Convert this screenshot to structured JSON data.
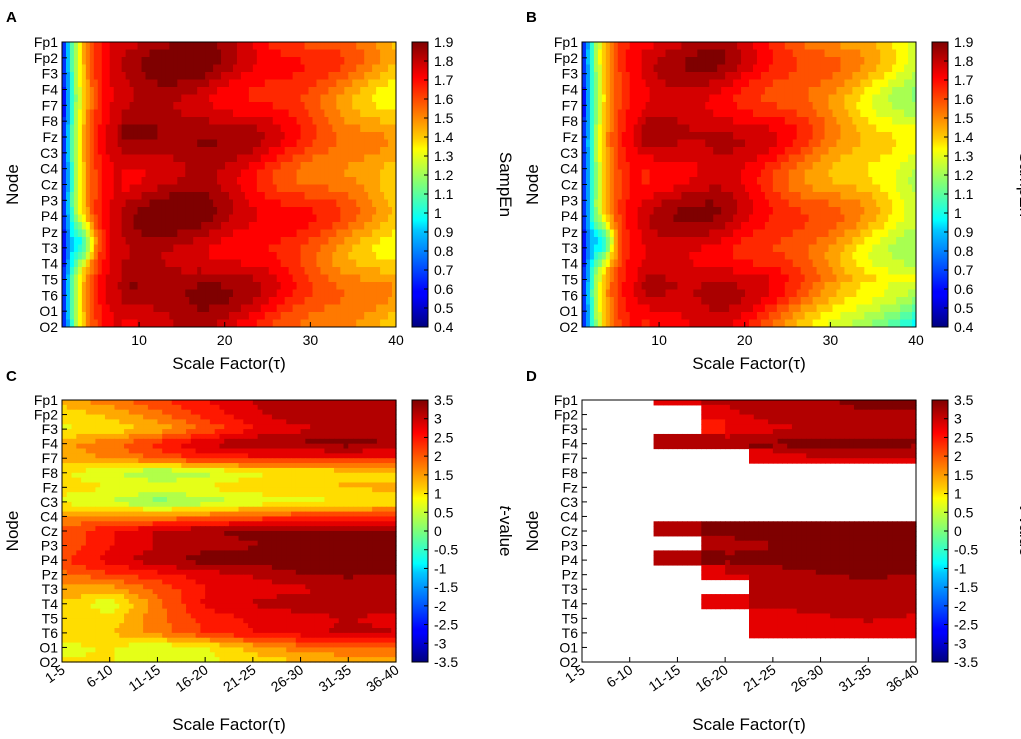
{
  "chart_data": [
    {
      "type": "heatmap",
      "panel_label": "A",
      "title": "",
      "xlabel": "Scale Factor(τ)",
      "ylabel": "Node",
      "x_axis": "numeric",
      "xlim": [
        1,
        40
      ],
      "x_ticks": [
        "10",
        "20",
        "30",
        "40"
      ],
      "x_tick_values": [
        10,
        20,
        30,
        40
      ],
      "nodes": [
        "Fp1",
        "Fp2",
        "F3",
        "F4",
        "F7",
        "F8",
        "Fz",
        "C3",
        "C4",
        "Cz",
        "P3",
        "P4",
        "Pz",
        "T3",
        "T4",
        "T5",
        "T6",
        "O1",
        "O2"
      ],
      "colorbar": {
        "label": "SampEn",
        "range": [
          0.4,
          1.9
        ],
        "ticks": [
          "1.9",
          "1.8",
          "1.7",
          "1.6",
          "1.5",
          "1.4",
          "1.3",
          "1.2",
          "1.1",
          "1",
          "0.9",
          "0.8",
          "0.7",
          "0.6",
          "0.5",
          "0.4"
        ]
      },
      "contour_approx": {
        "description": "SampEn rises from ~0.5 at scale 1 to ~1.8 near scale 10-18, then declines to ~1.3-1.5 at scale 40; dip around Pz-T3 at small scales",
        "peak_value": 1.85,
        "low_value": 0.5,
        "edge_value": 1.4
      }
    },
    {
      "type": "heatmap",
      "panel_label": "B",
      "title": "",
      "xlabel": "Scale Factor(τ)",
      "ylabel": "Node",
      "x_axis": "numeric",
      "xlim": [
        1,
        40
      ],
      "x_ticks": [
        "10",
        "20",
        "30",
        "40"
      ],
      "x_tick_values": [
        10,
        20,
        30,
        40
      ],
      "nodes": [
        "Fp1",
        "Fp2",
        "F3",
        "F4",
        "F7",
        "F8",
        "Fz",
        "C3",
        "C4",
        "Cz",
        "P3",
        "P4",
        "Pz",
        "T3",
        "T4",
        "T5",
        "T6",
        "O1",
        "O2"
      ],
      "colorbar": {
        "label": "SampEn",
        "range": [
          0.4,
          1.9
        ],
        "ticks": [
          "1.9",
          "1.8",
          "1.7",
          "1.6",
          "1.5",
          "1.4",
          "1.3",
          "1.2",
          "1.1",
          "1",
          "0.9",
          "0.8",
          "0.7",
          "0.6",
          "0.5",
          "0.4"
        ]
      },
      "contour_approx": {
        "description": "Similar to A with lower SampEn at large scales (down to ~1.2 near scale 40, lowest near O1-O2)",
        "peak_value": 1.8,
        "low_value": 0.5,
        "edge_value": 1.25
      }
    },
    {
      "type": "heatmap",
      "panel_label": "C",
      "title": "",
      "xlabel": "Scale Factor(τ)",
      "ylabel": "Node",
      "x_axis": "categorical",
      "categories": [
        "1-5",
        "6-10",
        "11-15",
        "16-20",
        "21-25",
        "26-30",
        "31-35",
        "36-40"
      ],
      "nodes": [
        "Fp1",
        "Fp2",
        "F3",
        "F4",
        "F7",
        "F8",
        "Fz",
        "C3",
        "C4",
        "Cz",
        "P3",
        "P4",
        "Pz",
        "T3",
        "T4",
        "T5",
        "T6",
        "O1",
        "O2"
      ],
      "colorbar": {
        "label_italic": "t",
        "label": "-value",
        "range": [
          -3.5,
          3.5
        ],
        "ticks": [
          "3.5",
          "3",
          "2.5",
          "2",
          "1.5",
          "1",
          "0.5",
          "0",
          "-0.5",
          "-1",
          "-1.5",
          "-2",
          "-2.5",
          "-3",
          "-3.5"
        ]
      },
      "values": [
        [
          1.4,
          1.8,
          2.2,
          2.6,
          3.0,
          3.2,
          3.3,
          3.3
        ],
        [
          1.0,
          1.3,
          1.8,
          2.4,
          2.9,
          3.2,
          3.3,
          3.3
        ],
        [
          0.8,
          1.0,
          1.3,
          2.0,
          2.6,
          2.9,
          3.0,
          3.0
        ],
        [
          1.5,
          1.8,
          2.4,
          3.0,
          3.3,
          3.4,
          3.5,
          3.3
        ],
        [
          1.4,
          1.6,
          2.0,
          2.4,
          2.5,
          2.5,
          2.5,
          2.5
        ],
        [
          0.9,
          0.6,
          0.1,
          0.4,
          0.8,
          0.9,
          1.0,
          1.0
        ],
        [
          1.0,
          0.9,
          0.8,
          0.9,
          1.1,
          1.2,
          1.3,
          1.3
        ],
        [
          0.8,
          0.5,
          0.0,
          0.3,
          0.6,
          0.8,
          0.8,
          0.9
        ],
        [
          1.6,
          1.6,
          1.6,
          1.8,
          2.0,
          2.2,
          2.3,
          2.3
        ],
        [
          2.0,
          2.6,
          3.0,
          3.3,
          3.4,
          3.5,
          3.5,
          3.4
        ],
        [
          2.0,
          2.6,
          3.0,
          3.2,
          3.3,
          3.4,
          3.4,
          3.4
        ],
        [
          2.2,
          2.8,
          3.2,
          3.5,
          3.5,
          3.6,
          3.6,
          3.5
        ],
        [
          1.8,
          2.2,
          2.5,
          2.8,
          3.0,
          3.3,
          3.4,
          3.3
        ],
        [
          1.5,
          1.4,
          2.0,
          2.6,
          2.8,
          2.9,
          3.0,
          3.0
        ],
        [
          1.2,
          0.6,
          1.8,
          2.7,
          3.0,
          3.2,
          3.3,
          3.2
        ],
        [
          1.2,
          1.0,
          1.8,
          2.4,
          2.7,
          2.8,
          3.0,
          2.8
        ],
        [
          1.0,
          1.2,
          1.7,
          2.3,
          2.6,
          2.8,
          3.1,
          3.0
        ],
        [
          0.8,
          0.9,
          0.6,
          0.8,
          1.4,
          1.8,
          1.9,
          1.9
        ],
        [
          0.9,
          0.9,
          0.7,
          0.8,
          1.0,
          1.2,
          1.3,
          1.3
        ]
      ]
    },
    {
      "type": "heatmap",
      "panel_label": "D",
      "title": "",
      "xlabel": "Scale Factor(τ)",
      "ylabel": "Node",
      "x_axis": "categorical",
      "categories": [
        "1-5",
        "6-10",
        "11-15",
        "16-20",
        "21-25",
        "26-30",
        "31-35",
        "36-40"
      ],
      "nodes": [
        "Fp1",
        "Fp2",
        "F3",
        "F4",
        "F7",
        "F8",
        "Fz",
        "C3",
        "C4",
        "Cz",
        "P3",
        "P4",
        "Pz",
        "T3",
        "T4",
        "T5",
        "T6",
        "O1",
        "O2"
      ],
      "colorbar": {
        "label_italic": "t",
        "label": "-value",
        "range": [
          -3.5,
          3.5
        ],
        "ticks": [
          "3.5",
          "3",
          "2.5",
          "2",
          "1.5",
          "1",
          "0.5",
          "0",
          "-0.5",
          "-1",
          "-1.5",
          "-2",
          "-2.5",
          "-3",
          "-3.5"
        ]
      },
      "masked_note": "white = non-significant (masked)",
      "values": [
        [
          null,
          null,
          2.8,
          3.0,
          3.2,
          3.3,
          3.4,
          3.4
        ],
        [
          null,
          null,
          null,
          2.9,
          3.1,
          3.2,
          3.3,
          3.3
        ],
        [
          null,
          null,
          null,
          2.6,
          2.9,
          3.0,
          3.0,
          3.0
        ],
        [
          null,
          null,
          3.0,
          3.3,
          3.4,
          3.5,
          3.5,
          3.4
        ],
        [
          null,
          null,
          null,
          null,
          2.8,
          2.9,
          2.9,
          2.9
        ],
        [
          null,
          null,
          null,
          null,
          null,
          null,
          null,
          null
        ],
        [
          null,
          null,
          null,
          null,
          null,
          null,
          null,
          null
        ],
        [
          null,
          null,
          null,
          null,
          null,
          null,
          null,
          null
        ],
        [
          null,
          null,
          null,
          null,
          null,
          null,
          null,
          null
        ],
        [
          null,
          null,
          3.1,
          3.4,
          3.5,
          3.5,
          3.5,
          3.4
        ],
        [
          null,
          null,
          null,
          3.2,
          3.3,
          3.4,
          3.4,
          3.4
        ],
        [
          null,
          null,
          3.0,
          3.4,
          3.5,
          3.6,
          3.6,
          3.5
        ],
        [
          null,
          null,
          null,
          2.9,
          3.1,
          3.3,
          3.4,
          3.3
        ],
        [
          null,
          null,
          null,
          null,
          3.0,
          3.1,
          3.2,
          3.1
        ],
        [
          null,
          null,
          null,
          2.9,
          3.0,
          3.2,
          3.3,
          3.2
        ],
        [
          null,
          null,
          null,
          null,
          2.8,
          2.9,
          3.0,
          2.9
        ],
        [
          null,
          null,
          null,
          null,
          2.7,
          2.8,
          2.9,
          2.8
        ],
        [
          null,
          null,
          null,
          null,
          null,
          null,
          null,
          null
        ],
        [
          null,
          null,
          null,
          null,
          null,
          null,
          null,
          null
        ]
      ]
    }
  ]
}
